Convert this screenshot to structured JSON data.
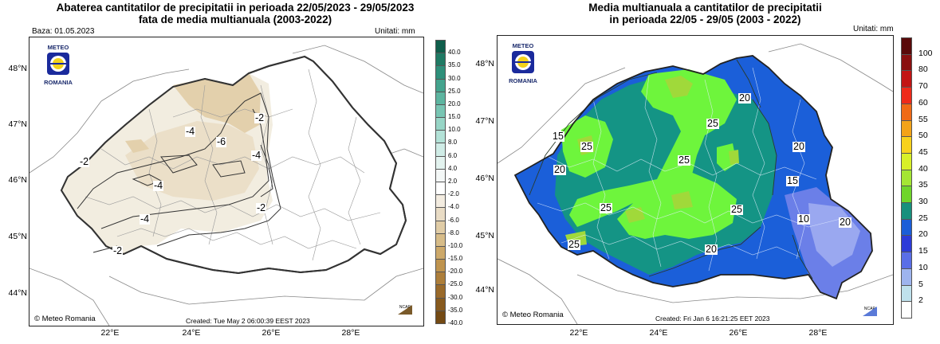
{
  "left": {
    "title_line1": "Abaterea cantitatilor de precipitatii in perioada 22/05/2023 - 29/05/2023",
    "title_line2": "fata de media multianuala (2003-2022)",
    "base": "Baza: 01.05.2023",
    "units": "Unitati: mm",
    "lat_labels": [
      "48°N",
      "47°N",
      "46°N",
      "45°N",
      "44°N"
    ],
    "lon_labels": [
      "22°E",
      "24°E",
      "26°E",
      "28°E"
    ],
    "logo_top": "METEO",
    "logo_bottom": "ROMANIA",
    "contour_labels": [
      "-2",
      "-4",
      "-6",
      "-4",
      "-2",
      "-4",
      "-4",
      "-2",
      "-2"
    ],
    "created": "Created: Tue May  2 06:00:39 EEST 2023",
    "copyright": "© Meteo Romania",
    "ncar": "NCAR",
    "colorbar_labels": [
      "40.0",
      "35.0",
      "30.0",
      "25.0",
      "20.0",
      "15.0",
      "10.0",
      "8.0",
      "6.0",
      "4.0",
      "2.0",
      "-2.0",
      "-4.0",
      "-6.0",
      "-8.0",
      "-10.0",
      "-15.0",
      "-20.0",
      "-25.0",
      "-30.0",
      "-35.0",
      "-40.0"
    ],
    "colorbar_colors": [
      "#0f5e4b",
      "#1f7a64",
      "#2e8f7a",
      "#44a38d",
      "#5db5a0",
      "#78c5b3",
      "#97d5c6",
      "#b3e2d7",
      "#cfece6",
      "#e3f3ef",
      "#f4f8f7",
      "#ffffff",
      "#f3ece0",
      "#e9dcc5",
      "#e0cca6",
      "#d7bc88",
      "#cda96a",
      "#bf944f",
      "#ad7e3a",
      "#9a6a2a",
      "#875a1e",
      "#744a14"
    ]
  },
  "right": {
    "title_line1": "Media multianuala a cantitatilor de precipitatii",
    "title_line2": "in perioada 22/05 - 29/05 (2003 - 2022)",
    "units": "Unitati: mm",
    "lat_labels": [
      "48°N",
      "47°N",
      "46°N",
      "45°N",
      "44°N"
    ],
    "lon_labels": [
      "22°E",
      "24°E",
      "26°E",
      "28°E"
    ],
    "logo_top": "METEO",
    "logo_bottom": "ROMANIA",
    "contour_labels": [
      "20",
      "15",
      "25",
      "25",
      "20",
      "20",
      "25",
      "15",
      "20",
      "25",
      "25",
      "10",
      "25",
      "20"
    ],
    "created": "Created: Fri Jan  6 16:21:25 EET 2023",
    "copyright": "© Meteo Romania",
    "ncar": "NCAR",
    "colorbar_labels": [
      "100",
      "80",
      "70",
      "60",
      "55",
      "50",
      "45",
      "40",
      "35",
      "30",
      "25",
      "20",
      "15",
      "10",
      "5",
      "2"
    ],
    "colorbar_colors": [
      "#5a0a0a",
      "#8a1010",
      "#c21414",
      "#ee2a1a",
      "#f06a16",
      "#f3a318",
      "#f8d21c",
      "#d8f028",
      "#a4e634",
      "#6fd52a",
      "#18907d",
      "#1a5ed8",
      "#2c3bd8",
      "#5a6ee6",
      "#9eb4ee",
      "#bfe1ec",
      "#ffffff"
    ]
  }
}
